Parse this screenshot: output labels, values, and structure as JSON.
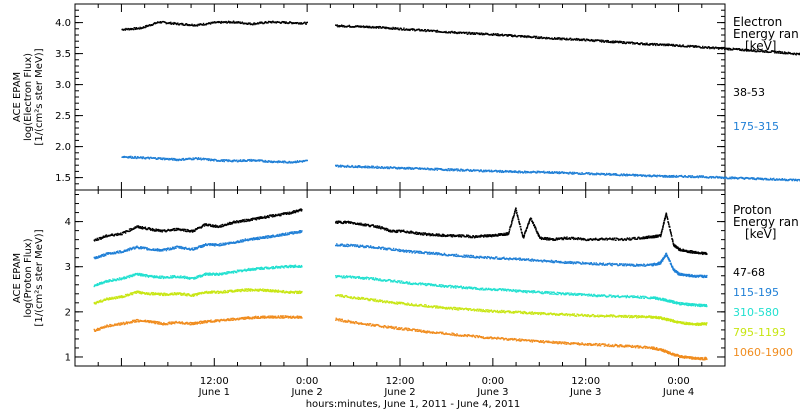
{
  "chart_data": [
    {
      "type": "scatter",
      "ylabel": [
        "ACE EPAM",
        "log(Electron Flux)",
        "[1/(cm²s ster MeV)]"
      ],
      "ylim": [
        1.3,
        4.3
      ],
      "yticks": [
        1.5,
        2.0,
        2.5,
        3.0,
        3.5,
        4.0
      ],
      "ytick_labels": [
        "1.5",
        "2.0",
        "2.5",
        "3.0",
        "3.5",
        "4.0"
      ],
      "legend_title": [
        "Electron",
        "Energy ran",
        "[keV]"
      ],
      "data_gap_days": [
        1.0,
        1.15
      ],
      "series": [
        {
          "name": "38-53",
          "color": "#000000",
          "x": [
            0.0,
            0.1,
            0.2,
            0.3,
            0.4,
            0.5,
            0.6,
            0.7,
            0.8,
            0.9,
            1.0,
            1.15,
            1.25,
            1.35,
            1.45,
            1.55,
            1.65,
            1.75,
            1.85,
            1.95,
            2.05,
            2.15,
            2.25,
            2.35,
            2.45,
            2.55,
            2.65,
            2.75,
            2.85,
            2.95,
            3.05,
            3.15,
            3.25,
            3.35,
            3.45,
            3.55,
            3.65,
            3.75,
            3.85,
            3.95,
            4.05,
            4.15
          ],
          "y": [
            3.9,
            3.92,
            4.02,
            3.99,
            3.97,
            4.01,
            4.02,
            3.99,
            4.02,
            4.01,
            4.0,
            3.96,
            3.95,
            3.94,
            3.92,
            3.9,
            3.88,
            3.86,
            3.84,
            3.83,
            3.81,
            3.79,
            3.77,
            3.75,
            3.74,
            3.72,
            3.7,
            3.68,
            3.66,
            3.65,
            3.63,
            3.61,
            3.59,
            3.57,
            3.55,
            3.53,
            3.5,
            3.48,
            3.46,
            3.43,
            3.4,
            3.37
          ]
        },
        {
          "name": "175-315",
          "color": "#1f7fd6",
          "x": [
            0.0,
            0.1,
            0.2,
            0.3,
            0.4,
            0.5,
            0.6,
            0.7,
            0.8,
            0.9,
            1.0,
            1.15,
            1.25,
            1.35,
            1.45,
            1.55,
            1.65,
            1.75,
            1.85,
            1.95,
            2.05,
            2.15,
            2.25,
            2.35,
            2.45,
            2.55,
            2.65,
            2.75,
            2.85,
            2.95,
            3.05,
            3.15,
            3.25,
            3.35,
            3.45,
            3.55,
            3.65,
            3.75,
            3.85,
            3.95,
            4.05,
            4.15
          ],
          "y": [
            1.85,
            1.83,
            1.82,
            1.8,
            1.82,
            1.79,
            1.78,
            1.79,
            1.77,
            1.76,
            1.78,
            1.7,
            1.69,
            1.68,
            1.67,
            1.66,
            1.65,
            1.64,
            1.63,
            1.62,
            1.61,
            1.6,
            1.6,
            1.59,
            1.58,
            1.57,
            1.56,
            1.55,
            1.54,
            1.53,
            1.53,
            1.52,
            1.51,
            1.5,
            1.49,
            1.48,
            1.47,
            1.46,
            1.45,
            1.45,
            1.44,
            1.43
          ]
        }
      ]
    },
    {
      "type": "scatter",
      "ylabel": [
        "ACE EPAM",
        "log(Proton Flux)",
        "[1/(cm²s ster MeV)]"
      ],
      "ylim": [
        0.8,
        4.7
      ],
      "yticks": [
        1,
        2,
        3,
        4
      ],
      "ytick_labels": [
        "1",
        "2",
        "3",
        "4"
      ],
      "legend_title": [
        "Proton",
        "Energy ran",
        "[keV]"
      ],
      "data_gap_days": [
        1.0,
        1.15
      ],
      "x_tick_labels": [
        "12:00",
        "0:00",
        "12:00",
        "0:00",
        "12:00",
        "0:00"
      ],
      "x_tick_days": [
        0.5,
        1.0,
        1.5,
        2.0,
        2.5,
        3.0
      ],
      "x_date_labels": [
        "June 1",
        "June 2",
        "June 2",
        "June 3",
        "June 3",
        "June 4"
      ],
      "xlim_days": [
        -0.25,
        3.25
      ],
      "x_axis_title": "hours:minutes, June  1, 2011 - June  4, 2011",
      "series": [
        {
          "name": "47-68",
          "color": "#000000",
          "x": [
            -0.15,
            -0.08,
            0.0,
            0.08,
            0.15,
            0.22,
            0.3,
            0.38,
            0.45,
            0.52,
            0.6,
            0.68,
            0.75,
            0.82,
            0.9,
            0.97,
            1.15,
            1.22,
            1.3,
            1.38,
            1.45,
            1.52,
            1.6,
            1.68,
            1.75,
            1.82,
            1.9,
            1.97,
            2.03,
            2.08,
            2.12,
            2.16,
            2.2,
            2.25,
            2.32,
            2.4,
            2.5,
            2.6,
            2.7,
            2.8,
            2.85,
            2.9,
            2.93,
            2.97,
            3.0,
            3.05,
            3.1,
            3.15
          ],
          "y": [
            3.6,
            3.7,
            3.75,
            3.9,
            3.85,
            3.8,
            3.85,
            3.8,
            3.95,
            3.9,
            4.0,
            4.05,
            4.1,
            4.15,
            4.2,
            4.28,
            4.0,
            4.0,
            3.95,
            3.9,
            3.8,
            3.8,
            3.75,
            3.72,
            3.7,
            3.7,
            3.68,
            3.7,
            3.72,
            3.75,
            4.3,
            3.65,
            4.1,
            3.65,
            3.62,
            3.65,
            3.62,
            3.63,
            3.62,
            3.65,
            3.68,
            3.7,
            4.2,
            3.5,
            3.4,
            3.35,
            3.33,
            3.3
          ]
        },
        {
          "name": "115-195",
          "color": "#1f7fd6",
          "x": [
            -0.15,
            -0.08,
            0.0,
            0.08,
            0.15,
            0.22,
            0.3,
            0.38,
            0.45,
            0.52,
            0.6,
            0.68,
            0.75,
            0.82,
            0.9,
            0.97,
            1.15,
            1.25,
            1.35,
            1.45,
            1.55,
            1.65,
            1.75,
            1.85,
            1.95,
            2.05,
            2.15,
            2.25,
            2.35,
            2.45,
            2.55,
            2.65,
            2.75,
            2.85,
            2.9,
            2.93,
            2.97,
            3.0,
            3.05,
            3.1,
            3.15
          ],
          "y": [
            3.2,
            3.3,
            3.35,
            3.45,
            3.4,
            3.38,
            3.45,
            3.4,
            3.5,
            3.5,
            3.55,
            3.62,
            3.65,
            3.7,
            3.75,
            3.8,
            3.5,
            3.48,
            3.45,
            3.4,
            3.35,
            3.32,
            3.28,
            3.25,
            3.22,
            3.2,
            3.18,
            3.15,
            3.12,
            3.1,
            3.08,
            3.06,
            3.05,
            3.05,
            3.1,
            3.3,
            2.95,
            2.85,
            2.82,
            2.8,
            2.8
          ]
        },
        {
          "name": "310-580",
          "color": "#22e0d0",
          "x": [
            -0.15,
            -0.08,
            0.0,
            0.08,
            0.15,
            0.22,
            0.3,
            0.38,
            0.45,
            0.52,
            0.6,
            0.68,
            0.75,
            0.82,
            0.9,
            0.97,
            1.15,
            1.25,
            1.35,
            1.45,
            1.55,
            1.65,
            1.75,
            1.85,
            1.95,
            2.05,
            2.15,
            2.25,
            2.35,
            2.45,
            2.55,
            2.65,
            2.75,
            2.85,
            2.9,
            2.95,
            3.0,
            3.05,
            3.1,
            3.15
          ],
          "y": [
            2.6,
            2.7,
            2.75,
            2.85,
            2.8,
            2.78,
            2.8,
            2.75,
            2.85,
            2.85,
            2.9,
            2.95,
            2.98,
            3.0,
            3.02,
            3.03,
            2.8,
            2.78,
            2.75,
            2.7,
            2.65,
            2.62,
            2.58,
            2.55,
            2.52,
            2.5,
            2.47,
            2.45,
            2.42,
            2.4,
            2.38,
            2.36,
            2.35,
            2.33,
            2.3,
            2.25,
            2.2,
            2.18,
            2.16,
            2.15
          ]
        },
        {
          "name": "795-1193",
          "color": "#c8e614",
          "x": [
            -0.15,
            -0.08,
            0.0,
            0.08,
            0.15,
            0.22,
            0.3,
            0.38,
            0.45,
            0.52,
            0.6,
            0.68,
            0.75,
            0.82,
            0.9,
            0.97,
            1.15,
            1.25,
            1.35,
            1.45,
            1.55,
            1.65,
            1.75,
            1.85,
            1.95,
            2.05,
            2.15,
            2.25,
            2.35,
            2.45,
            2.55,
            2.65,
            2.75,
            2.85,
            2.9,
            2.95,
            3.0,
            3.05,
            3.1,
            3.15
          ],
          "y": [
            2.2,
            2.3,
            2.35,
            2.45,
            2.42,
            2.4,
            2.42,
            2.38,
            2.45,
            2.45,
            2.48,
            2.5,
            2.5,
            2.48,
            2.45,
            2.45,
            2.38,
            2.33,
            2.28,
            2.22,
            2.18,
            2.14,
            2.1,
            2.07,
            2.04,
            2.02,
            2.0,
            1.98,
            1.96,
            1.94,
            1.93,
            1.92,
            1.91,
            1.9,
            1.88,
            1.83,
            1.78,
            1.75,
            1.74,
            1.75
          ]
        },
        {
          "name": "1060-1900",
          "color": "#f08c1e",
          "x": [
            -0.15,
            -0.08,
            0.0,
            0.08,
            0.15,
            0.22,
            0.3,
            0.38,
            0.45,
            0.52,
            0.6,
            0.68,
            0.75,
            0.82,
            0.9,
            0.97,
            1.15,
            1.25,
            1.35,
            1.45,
            1.55,
            1.65,
            1.75,
            1.85,
            1.95,
            2.05,
            2.15,
            2.25,
            2.35,
            2.45,
            2.55,
            2.65,
            2.75,
            2.85,
            2.9,
            2.95,
            3.0,
            3.05,
            3.1,
            3.15
          ],
          "y": [
            1.6,
            1.7,
            1.75,
            1.82,
            1.8,
            1.75,
            1.78,
            1.75,
            1.8,
            1.82,
            1.85,
            1.88,
            1.9,
            1.9,
            1.9,
            1.9,
            1.85,
            1.78,
            1.72,
            1.67,
            1.62,
            1.57,
            1.53,
            1.49,
            1.45,
            1.42,
            1.39,
            1.36,
            1.33,
            1.31,
            1.29,
            1.27,
            1.25,
            1.22,
            1.18,
            1.1,
            1.03,
            1.0,
            0.98,
            0.98
          ]
        }
      ]
    }
  ]
}
